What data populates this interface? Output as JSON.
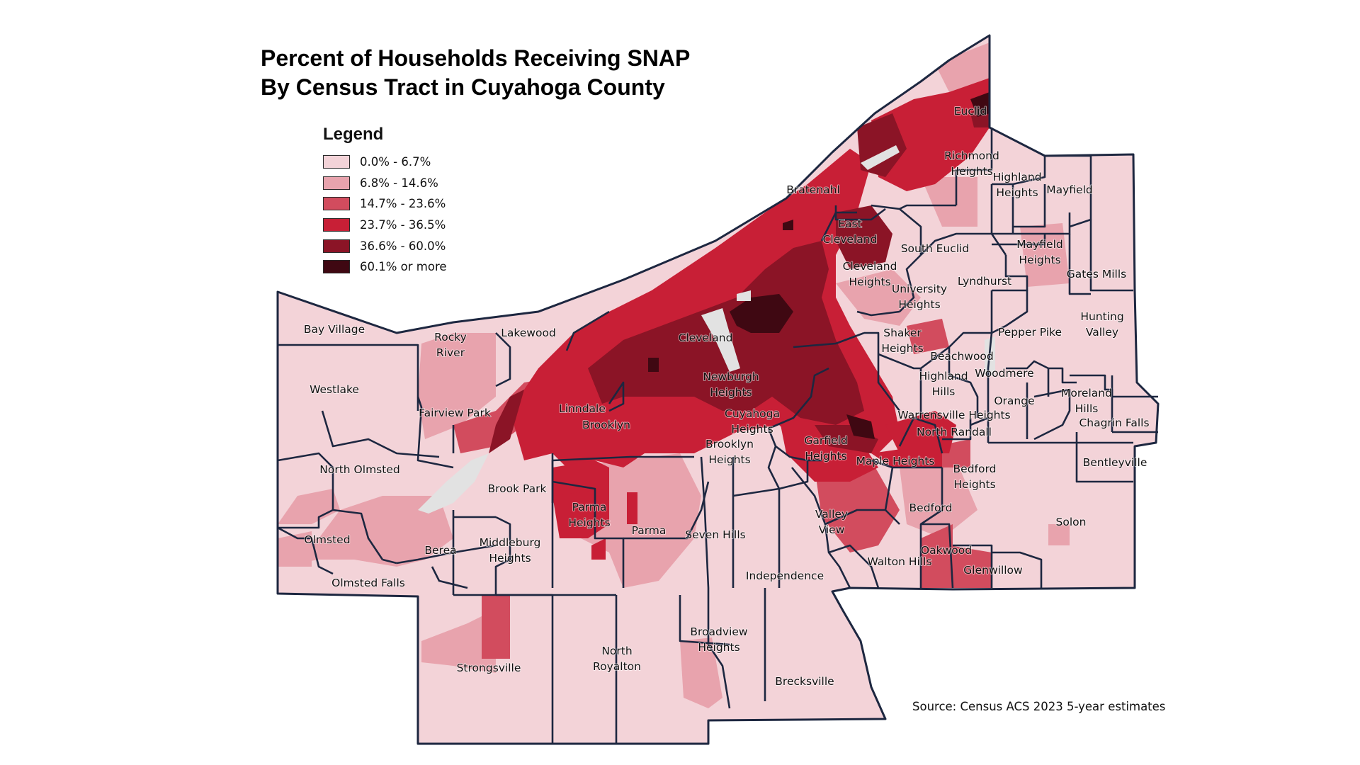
{
  "title_lines": [
    "Percent of Households Receiving SNAP",
    "By Census Tract in Cuyahoga County"
  ],
  "legend": {
    "title": "Legend",
    "classes": [
      {
        "label": "0.0% - 6.7%",
        "color": "#f3d3d8"
      },
      {
        "label": "6.8% - 14.6%",
        "color": "#e8a3ad"
      },
      {
        "label": "14.7% - 23.6%",
        "color": "#d24c5e"
      },
      {
        "label": "23.7% - 36.5%",
        "color": "#c81f36"
      },
      {
        "label": "36.6% - 60.0%",
        "color": "#8b1426"
      },
      {
        "label": "60.1% or more",
        "color": "#3f0812"
      }
    ]
  },
  "no_data_color": "#e2e2e2",
  "boundary_color": "#1d2740",
  "source": "Source: Census ACS 2023 5-year estimates",
  "places": [
    {
      "name": "Euclid",
      "lines": [
        "Euclid"
      ]
    },
    {
      "name": "Richmond Heights",
      "lines": [
        "Richmond",
        "Heights"
      ]
    },
    {
      "name": "Highland Heights",
      "lines": [
        "Highland",
        "Heights"
      ]
    },
    {
      "name": "Mayfield",
      "lines": [
        "Mayfield"
      ]
    },
    {
      "name": "Bratenahl",
      "lines": [
        "Bratenahl"
      ]
    },
    {
      "name": "East Cleveland",
      "lines": [
        "East",
        "Cleveland"
      ]
    },
    {
      "name": "South Euclid",
      "lines": [
        "South Euclid"
      ]
    },
    {
      "name": "Mayfield Heights",
      "lines": [
        "Mayfield",
        "Heights"
      ]
    },
    {
      "name": "Gates Mills",
      "lines": [
        "Gates Mills"
      ]
    },
    {
      "name": "Cleveland Heights",
      "lines": [
        "Cleveland",
        "Heights"
      ]
    },
    {
      "name": "Lyndhurst",
      "lines": [
        "Lyndhurst"
      ]
    },
    {
      "name": "University Heights",
      "lines": [
        "University",
        "Heights"
      ]
    },
    {
      "name": "Hunting Valley",
      "lines": [
        "Hunting",
        "Valley"
      ]
    },
    {
      "name": "Pepper Pike",
      "lines": [
        "Pepper Pike"
      ]
    },
    {
      "name": "Bay Village",
      "lines": [
        "Bay Village"
      ]
    },
    {
      "name": "Lakewood",
      "lines": [
        "Lakewood"
      ]
    },
    {
      "name": "Cleveland",
      "lines": [
        "Cleveland"
      ]
    },
    {
      "name": "Rocky River",
      "lines": [
        "Rocky",
        "River"
      ]
    },
    {
      "name": "Shaker Heights",
      "lines": [
        "Shaker",
        "Heights"
      ]
    },
    {
      "name": "Beachwood",
      "lines": [
        "Beachwood"
      ]
    },
    {
      "name": "Woodmere",
      "lines": [
        "Woodmere"
      ]
    },
    {
      "name": "Westlake",
      "lines": [
        "Westlake"
      ]
    },
    {
      "name": "Newburgh Heights",
      "lines": [
        "Newburgh",
        "Heights"
      ]
    },
    {
      "name": "Highland Hills",
      "lines": [
        "Highland",
        "Hills"
      ]
    },
    {
      "name": "Orange",
      "lines": [
        "Orange"
      ]
    },
    {
      "name": "Moreland Hills",
      "lines": [
        "Moreland",
        "Hills"
      ]
    },
    {
      "name": "Linndale",
      "lines": [
        "Linndale"
      ]
    },
    {
      "name": "Fairview Park",
      "lines": [
        "Fairview Park"
      ]
    },
    {
      "name": "Cuyahoga Heights",
      "lines": [
        "Cuyahoga",
        "Heights"
      ]
    },
    {
      "name": "Warrensville Heights",
      "lines": [
        "Warrensville Heights"
      ]
    },
    {
      "name": "Chagrin Falls",
      "lines": [
        "Chagrin Falls"
      ]
    },
    {
      "name": "Brooklyn",
      "lines": [
        "Brooklyn"
      ]
    },
    {
      "name": "North Randall",
      "lines": [
        "North Randall"
      ]
    },
    {
      "name": "Garfield Heights",
      "lines": [
        "Garfield",
        "Heights"
      ]
    },
    {
      "name": "Brooklyn Heights",
      "lines": [
        "Brooklyn",
        "Heights"
      ]
    },
    {
      "name": "Maple Heights",
      "lines": [
        "Maple Heights"
      ]
    },
    {
      "name": "Bentleyville",
      "lines": [
        "Bentleyville"
      ]
    },
    {
      "name": "North Olmsted",
      "lines": [
        "North Olmsted"
      ]
    },
    {
      "name": "Bedford Heights",
      "lines": [
        "Bedford",
        "Heights"
      ]
    },
    {
      "name": "Brook Park",
      "lines": [
        "Brook Park"
      ]
    },
    {
      "name": "Bedford",
      "lines": [
        "Bedford"
      ]
    },
    {
      "name": "Parma Heights",
      "lines": [
        "Parma",
        "Heights"
      ]
    },
    {
      "name": "Valley View",
      "lines": [
        "Valley",
        "View"
      ]
    },
    {
      "name": "Solon",
      "lines": [
        "Solon"
      ]
    },
    {
      "name": "Parma",
      "lines": [
        "Parma"
      ]
    },
    {
      "name": "Seven Hills",
      "lines": [
        "Seven Hills"
      ]
    },
    {
      "name": "Olmsted",
      "lines": [
        "Olmsted"
      ]
    },
    {
      "name": "Berea",
      "lines": [
        "Berea"
      ]
    },
    {
      "name": "Middleburg Heights",
      "lines": [
        "Middleburg",
        "Heights"
      ]
    },
    {
      "name": "Oakwood",
      "lines": [
        "Oakwood"
      ]
    },
    {
      "name": "Walton Hills",
      "lines": [
        "Walton Hills"
      ]
    },
    {
      "name": "Glenwillow",
      "lines": [
        "Glenwillow"
      ]
    },
    {
      "name": "Independence",
      "lines": [
        "Independence"
      ]
    },
    {
      "name": "Olmsted Falls",
      "lines": [
        "Olmsted Falls"
      ]
    },
    {
      "name": "Broadview Heights",
      "lines": [
        "Broadview",
        "Heights"
      ]
    },
    {
      "name": "North Royalton",
      "lines": [
        "North",
        "Royalton"
      ]
    },
    {
      "name": "Strongsville",
      "lines": [
        "Strongsville"
      ]
    },
    {
      "name": "Brecksville",
      "lines": [
        "Brecksville"
      ]
    }
  ]
}
